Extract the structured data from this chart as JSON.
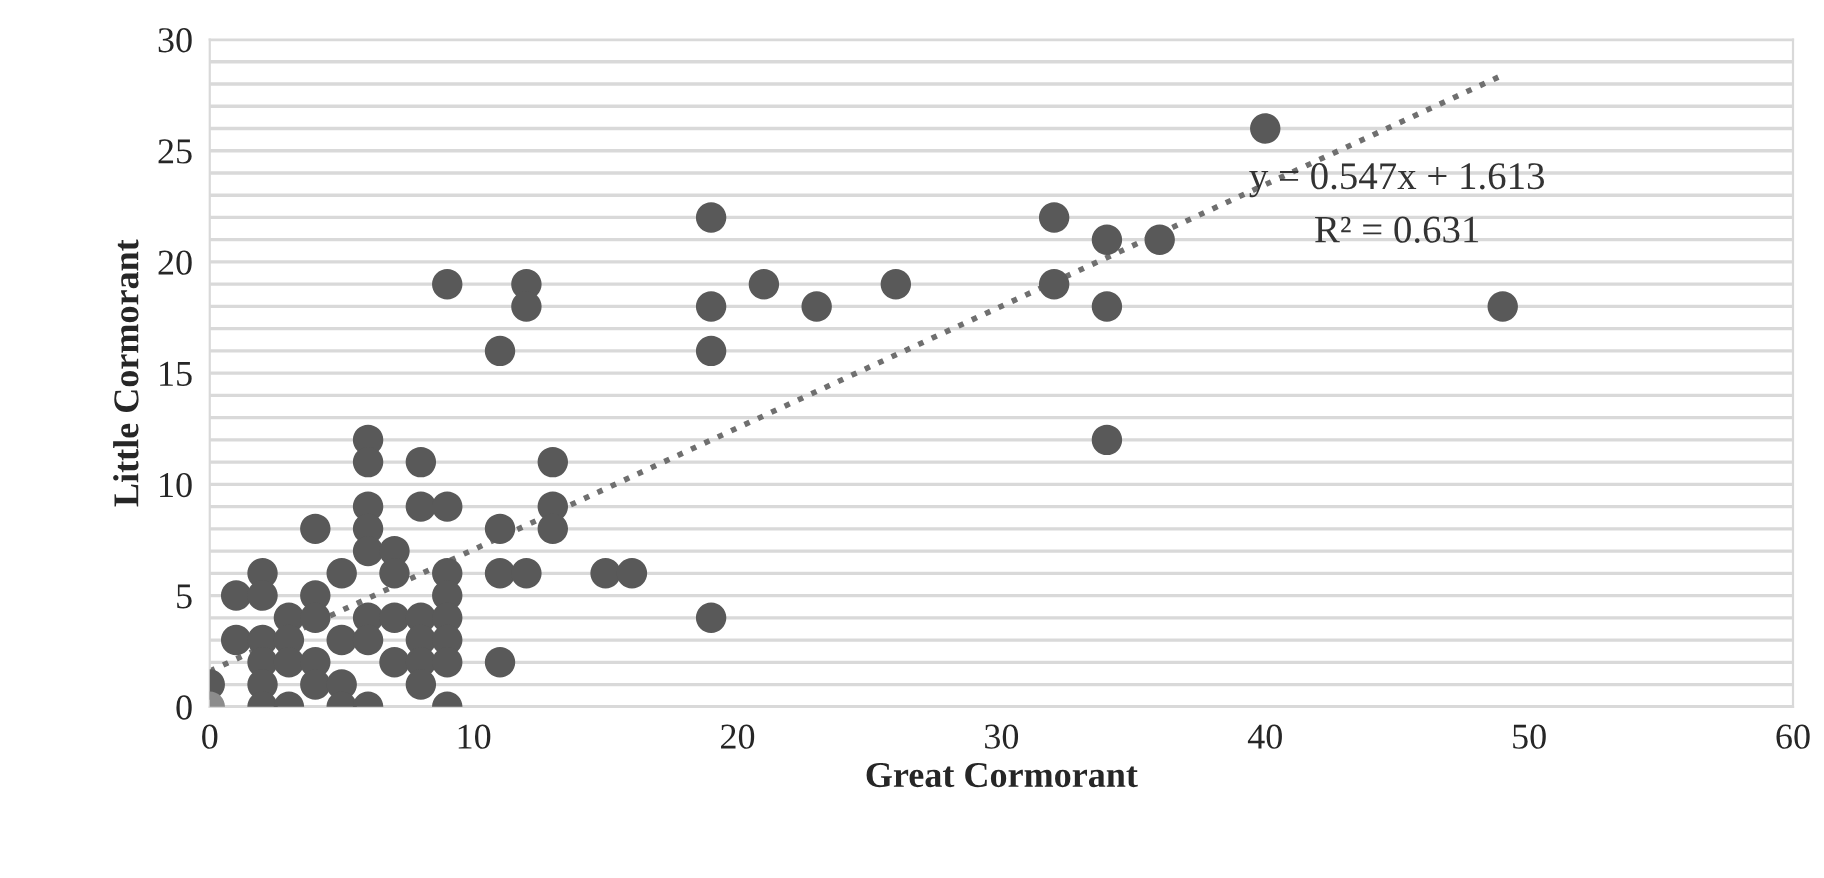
{
  "chart_data": {
    "type": "scatter",
    "xlabel": "Great Cormorant",
    "ylabel": "Little Cormorant",
    "xlim": [
      0,
      60
    ],
    "xticks": [
      0,
      10,
      20,
      30,
      40,
      50,
      60
    ],
    "ylim": [
      0,
      30
    ],
    "yticks": [
      0,
      {
        "value": 1,
        "label": null
      },
      {
        "value": 2,
        "label": null
      },
      {
        "value": 3,
        "label": null
      },
      {
        "value": 4,
        "label": null
      },
      5,
      {
        "value": 6,
        "label": null
      },
      {
        "value": 7,
        "label": null
      },
      {
        "value": 8,
        "label": null
      },
      {
        "value": 9,
        "label": null
      },
      10,
      {
        "value": 11,
        "label": null
      },
      {
        "value": 12,
        "label": null
      },
      {
        "value": 13,
        "label": null
      },
      {
        "value": 14,
        "label": null
      },
      15,
      {
        "value": 16,
        "label": null
      },
      {
        "value": 17,
        "label": null
      },
      {
        "value": 18,
        "label": null
      },
      {
        "value": 19,
        "label": null
      },
      20,
      {
        "value": 21,
        "label": null
      },
      {
        "value": 22,
        "label": null
      },
      {
        "value": 23,
        "label": null
      },
      {
        "value": 24,
        "label": null
      },
      25,
      {
        "value": 26,
        "label": null
      },
      {
        "value": 27,
        "label": null
      },
      {
        "value": 28,
        "label": null
      },
      {
        "value": 29,
        "label": null
      },
      30
    ],
    "grid": "y",
    "marker": "circle",
    "series": [
      {
        "color": "#595959",
        "x": [
          0,
          1,
          1,
          2,
          2,
          2,
          2,
          2,
          2,
          3,
          3,
          3,
          3,
          4,
          4,
          4,
          4,
          4,
          5,
          5,
          5,
          5,
          6,
          6,
          6,
          6,
          6,
          6,
          6,
          6,
          7,
          7,
          7,
          7,
          8,
          8,
          8,
          8,
          8,
          8,
          9,
          9,
          9,
          9,
          9,
          9,
          9,
          9,
          11,
          11,
          11,
          11,
          12,
          12,
          12,
          13,
          13,
          13,
          15,
          16,
          19,
          19,
          19,
          19,
          21,
          23,
          26,
          32,
          32,
          34,
          34,
          34,
          36,
          40,
          49
        ],
        "values": [
          1,
          5,
          3,
          6,
          5,
          3,
          2,
          1,
          0,
          4,
          3,
          2,
          0,
          8,
          5,
          4,
          2,
          1,
          6,
          3,
          1,
          0,
          12,
          11,
          9,
          8,
          7,
          4,
          3,
          0,
          7,
          6,
          4,
          2,
          11,
          9,
          4,
          3,
          2,
          1,
          19,
          9,
          6,
          5,
          4,
          3,
          2,
          0,
          16,
          8,
          6,
          2,
          19,
          18,
          6,
          11,
          9,
          8,
          6,
          6,
          22,
          18,
          16,
          4,
          19,
          18,
          19,
          22,
          19,
          21,
          18,
          12,
          21,
          26,
          18
        ]
      },
      {
        "color": "#8c8c8c",
        "x": [
          0
        ],
        "values": [
          0
        ]
      },
      {
        "type": "line",
        "color": "#6f6f6f",
        "line_style": "dotted",
        "marker": "none",
        "x": [
          0,
          49
        ],
        "values": [
          1.6,
          28.4
        ]
      }
    ],
    "annotations": [
      "y = 0.547x + 1.613",
      "R² = 0.631"
    ]
  }
}
